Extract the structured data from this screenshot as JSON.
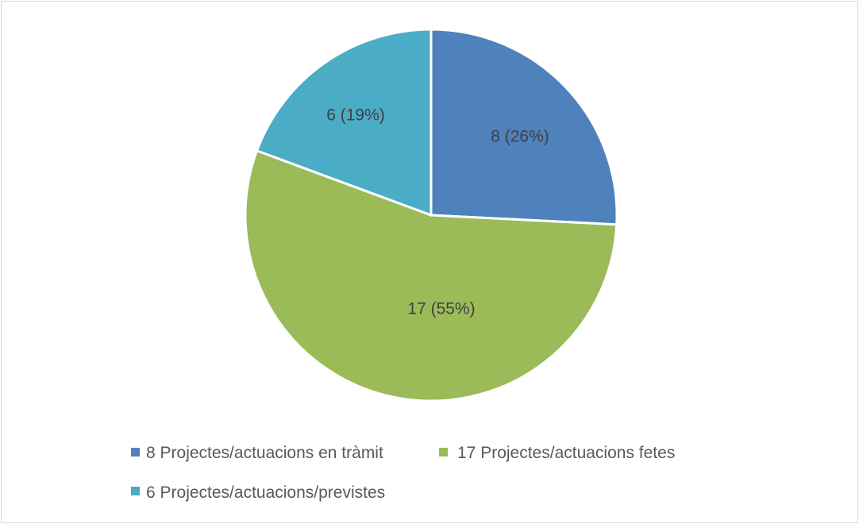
{
  "chart_data": {
    "type": "pie",
    "title": "",
    "legend_position": "bottom",
    "slices": [
      {
        "name": "8 Projectes/actuacions en tràmit",
        "value": 8,
        "percent": 26,
        "label": "8 (26%)",
        "color": "#4F81BD"
      },
      {
        "name": "17 Projectes/actuacions fetes",
        "value": 17,
        "percent": 55,
        "label": "17 (55%)",
        "color": "#9BBB59"
      },
      {
        "name": "6 Projectes/actuacions/previstes",
        "value": 6,
        "percent": 19,
        "label": "6 (19%)",
        "color": "#4BACC6"
      }
    ]
  }
}
